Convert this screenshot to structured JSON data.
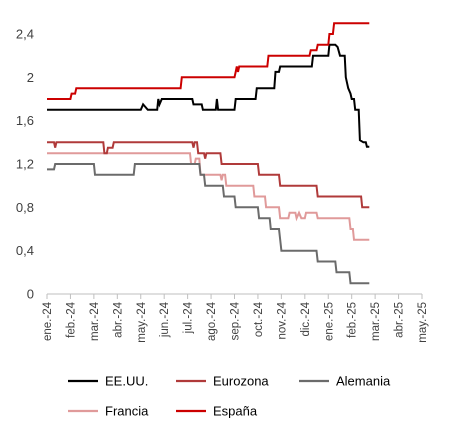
{
  "chart_data": {
    "type": "line",
    "title": "",
    "xlabel": "",
    "ylabel": "",
    "ylim": [
      0,
      2.4
    ],
    "y_ticks": [
      "0",
      "0,4",
      "0,8",
      "1,2",
      "1,6",
      "2",
      "2,4"
    ],
    "x_ticks": [
      "ene.-24",
      "feb.-24",
      "mar.-24",
      "abr.-24",
      "may.-24",
      "jun.-24",
      "jul.-24",
      "ago.-24",
      "sep.-24",
      "oct.-24",
      "nov.-24",
      "dic.-24",
      "ene.-25",
      "feb.-25",
      "mar.-25",
      "abr.-25",
      "may.-25"
    ],
    "grid": false,
    "legend_position": "bottom",
    "series": [
      {
        "name": "EE.UU.",
        "color": "#000000",
        "points": [
          [
            0,
            1.7
          ],
          [
            4.0,
            1.7
          ],
          [
            4.1,
            1.75
          ],
          [
            4.3,
            1.7
          ],
          [
            4.7,
            1.7
          ],
          [
            4.75,
            1.8
          ],
          [
            4.8,
            1.75
          ],
          [
            4.9,
            1.8
          ],
          [
            6.2,
            1.8
          ],
          [
            6.25,
            1.75
          ],
          [
            6.6,
            1.75
          ],
          [
            6.65,
            1.7
          ],
          [
            7.2,
            1.7
          ],
          [
            7.25,
            1.8
          ],
          [
            7.3,
            1.7
          ],
          [
            8.0,
            1.7
          ],
          [
            8.05,
            1.8
          ],
          [
            8.9,
            1.8
          ],
          [
            8.95,
            1.9
          ],
          [
            9.7,
            1.9
          ],
          [
            9.75,
            2.05
          ],
          [
            9.9,
            2.05
          ],
          [
            9.95,
            2.1
          ],
          [
            11.3,
            2.1
          ],
          [
            11.35,
            2.2
          ],
          [
            12.0,
            2.2
          ],
          [
            12.05,
            2.3
          ],
          [
            12.3,
            2.3
          ],
          [
            12.4,
            2.28
          ],
          [
            12.5,
            2.2
          ],
          [
            12.7,
            2.2
          ],
          [
            12.75,
            2.0
          ],
          [
            12.85,
            1.9
          ],
          [
            12.95,
            1.85
          ],
          [
            13.0,
            1.8
          ],
          [
            13.1,
            1.8
          ],
          [
            13.15,
            1.7
          ],
          [
            13.3,
            1.7
          ],
          [
            13.35,
            1.42
          ],
          [
            13.5,
            1.4
          ],
          [
            13.6,
            1.4
          ],
          [
            13.65,
            1.36
          ],
          [
            13.75,
            1.36
          ]
        ]
      },
      {
        "name": "Eurozona",
        "color": "#b03a3a",
        "points": [
          [
            0,
            1.4
          ],
          [
            0.3,
            1.4
          ],
          [
            0.35,
            1.35
          ],
          [
            0.4,
            1.4
          ],
          [
            2.4,
            1.4
          ],
          [
            2.45,
            1.3
          ],
          [
            2.55,
            1.3
          ],
          [
            2.6,
            1.35
          ],
          [
            2.8,
            1.35
          ],
          [
            2.85,
            1.4
          ],
          [
            6.2,
            1.4
          ],
          [
            6.25,
            1.35
          ],
          [
            6.3,
            1.4
          ],
          [
            6.4,
            1.4
          ],
          [
            6.45,
            1.3
          ],
          [
            6.7,
            1.3
          ],
          [
            6.75,
            1.25
          ],
          [
            6.8,
            1.3
          ],
          [
            7.4,
            1.3
          ],
          [
            7.45,
            1.2
          ],
          [
            9.0,
            1.2
          ],
          [
            9.05,
            1.1
          ],
          [
            9.9,
            1.1
          ],
          [
            9.95,
            1.0
          ],
          [
            11.5,
            1.0
          ],
          [
            11.55,
            0.9
          ],
          [
            13.4,
            0.9
          ],
          [
            13.45,
            0.8
          ],
          [
            13.75,
            0.8
          ]
        ]
      },
      {
        "name": "Alemania",
        "color": "#6b6b6b",
        "points": [
          [
            0,
            1.15
          ],
          [
            0.3,
            1.15
          ],
          [
            0.35,
            1.2
          ],
          [
            2.0,
            1.2
          ],
          [
            2.05,
            1.1
          ],
          [
            3.7,
            1.1
          ],
          [
            3.75,
            1.2
          ],
          [
            6.5,
            1.2
          ],
          [
            6.55,
            1.1
          ],
          [
            6.7,
            1.1
          ],
          [
            6.75,
            1.0
          ],
          [
            7.5,
            1.0
          ],
          [
            7.55,
            0.9
          ],
          [
            8.0,
            0.9
          ],
          [
            8.05,
            0.8
          ],
          [
            9.0,
            0.8
          ],
          [
            9.05,
            0.7
          ],
          [
            9.5,
            0.7
          ],
          [
            9.55,
            0.6
          ],
          [
            9.9,
            0.6
          ],
          [
            9.95,
            0.5
          ],
          [
            10.0,
            0.4
          ],
          [
            11.5,
            0.4
          ],
          [
            11.55,
            0.3
          ],
          [
            12.3,
            0.3
          ],
          [
            12.35,
            0.2
          ],
          [
            12.9,
            0.2
          ],
          [
            12.95,
            0.1
          ],
          [
            13.75,
            0.1
          ]
        ]
      },
      {
        "name": "Francia",
        "color": "#e09a9a",
        "points": [
          [
            0,
            1.3
          ],
          [
            6.1,
            1.3
          ],
          [
            6.15,
            1.2
          ],
          [
            6.3,
            1.2
          ],
          [
            6.35,
            1.25
          ],
          [
            6.5,
            1.25
          ],
          [
            6.55,
            1.1
          ],
          [
            7.4,
            1.1
          ],
          [
            7.45,
            1.05
          ],
          [
            7.5,
            1.1
          ],
          [
            7.6,
            1.1
          ],
          [
            7.65,
            1.0
          ],
          [
            8.8,
            1.0
          ],
          [
            8.85,
            0.9
          ],
          [
            9.3,
            0.9
          ],
          [
            9.35,
            0.8
          ],
          [
            9.9,
            0.8
          ],
          [
            9.95,
            0.7
          ],
          [
            10.3,
            0.7
          ],
          [
            10.35,
            0.75
          ],
          [
            10.6,
            0.75
          ],
          [
            10.65,
            0.7
          ],
          [
            10.75,
            0.75
          ],
          [
            10.85,
            0.7
          ],
          [
            11.0,
            0.7
          ],
          [
            11.05,
            0.75
          ],
          [
            11.5,
            0.75
          ],
          [
            11.55,
            0.7
          ],
          [
            12.9,
            0.7
          ],
          [
            12.95,
            0.6
          ],
          [
            13.05,
            0.6
          ],
          [
            13.1,
            0.5
          ],
          [
            13.75,
            0.5
          ]
        ]
      },
      {
        "name": "España",
        "color": "#cc0000",
        "points": [
          [
            0,
            1.8
          ],
          [
            1.0,
            1.8
          ],
          [
            1.05,
            1.85
          ],
          [
            1.2,
            1.85
          ],
          [
            1.25,
            1.9
          ],
          [
            5.7,
            1.9
          ],
          [
            5.75,
            2.0
          ],
          [
            8.0,
            2.0
          ],
          [
            8.05,
            2.05
          ],
          [
            8.1,
            2.1
          ],
          [
            8.15,
            2.05
          ],
          [
            8.2,
            2.1
          ],
          [
            9.4,
            2.1
          ],
          [
            9.45,
            2.2
          ],
          [
            11.2,
            2.2
          ],
          [
            11.25,
            2.25
          ],
          [
            11.5,
            2.25
          ],
          [
            11.55,
            2.3
          ],
          [
            12.0,
            2.3
          ],
          [
            12.05,
            2.4
          ],
          [
            12.2,
            2.4
          ],
          [
            12.25,
            2.5
          ],
          [
            13.75,
            2.5
          ]
        ]
      }
    ]
  }
}
